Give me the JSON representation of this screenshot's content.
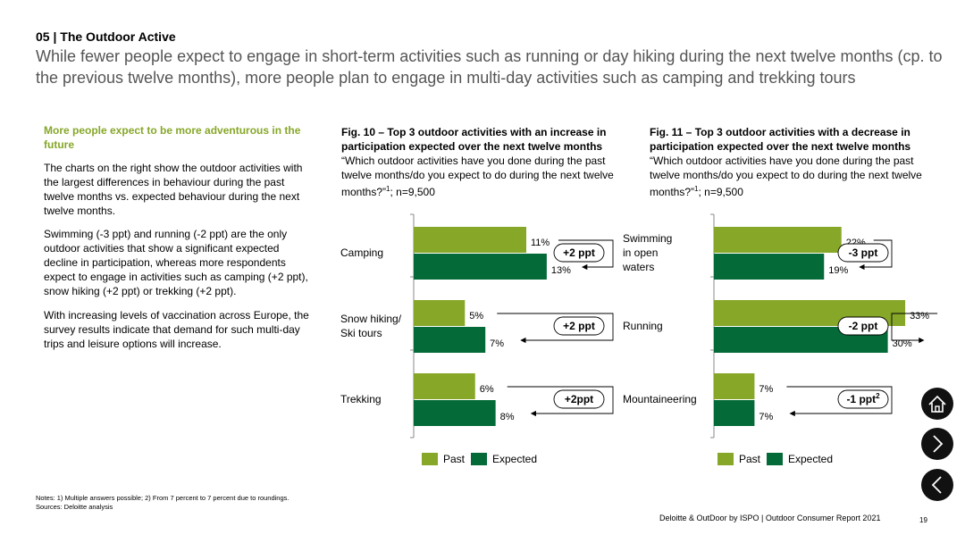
{
  "header": {
    "section_title": "05 | The Outdoor Active",
    "headline": "While fewer people expect to engage in short-term activities such as running or day hiking during the next twelve months (cp. to the previous twelve months), more people plan to engage in multi-day activities such as camping and trekking tours"
  },
  "intro": {
    "heading": "More people expect to be more adventurous in the future",
    "paragraphs": [
      "The charts on the right show the outdoor activities with the largest differences in behaviour during the past twelve months vs. expected behaviour during the next twelve months.",
      "Swimming (-3 ppt) and running (-2 ppt) are the only outdoor activities that show a significant expected decline in participation, whereas more respondents expect to engage in activities such as camping (+2 ppt), snow hiking (+2 ppt) or trekking (+2 ppt).",
      "With increasing levels of vaccination across Europe, the survey results indicate that demand for such multi-day trips and leisure options will increase."
    ]
  },
  "chart_data": [
    {
      "type": "bar",
      "orientation": "horizontal",
      "title": "Fig. 10 – Top 3 outdoor activities with an increase in participation expected over the next twelve months",
      "question": "“Which outdoor activities have you done during the past twelve months/do you expect to do during the next twelve months?”",
      "footnote_ref": "1",
      "sample": "; n=9,500",
      "categories": [
        "Camping",
        "Snow hiking/ Ski tours",
        "Trekking"
      ],
      "category_lines": [
        [
          "Camping"
        ],
        [
          "Snow hiking/",
          "Ski tours"
        ],
        [
          "Trekking"
        ]
      ],
      "series": [
        {
          "name": "Past",
          "values": [
            11,
            5,
            6
          ],
          "labels": [
            "11%",
            "5%",
            "6%"
          ]
        },
        {
          "name": "Expected",
          "values": [
            13,
            7,
            8
          ],
          "labels": [
            "13%",
            "7%",
            "8%"
          ]
        }
      ],
      "differences": [
        "+2 ppt",
        "+2 ppt",
        "+2ppt"
      ],
      "difference_sup": [
        "",
        "",
        ""
      ],
      "xlim": [
        0,
        22
      ]
    },
    {
      "type": "bar",
      "orientation": "horizontal",
      "title": "Fig. 11 – Top 3 outdoor activities with a decrease in participation expected over the next twelve months",
      "question": "“Which outdoor activities have you done during the past twelve months/do you expect to do during the next twelve months?”",
      "footnote_ref": "1",
      "sample": "; n=9,500",
      "categories": [
        "Swimming in open waters",
        "Running",
        "Mountaineering"
      ],
      "category_lines": [
        [
          "Swimming",
          "in open",
          "waters"
        ],
        [
          "Running"
        ],
        [
          "Mountaineering"
        ]
      ],
      "series": [
        {
          "name": "Past",
          "values": [
            22,
            33,
            7
          ],
          "labels": [
            "22%",
            "33%",
            "7%"
          ]
        },
        {
          "name": "Expected",
          "values": [
            19,
            30,
            7
          ],
          "labels": [
            "19%",
            "30%",
            "7%"
          ]
        }
      ],
      "differences": [
        "-3 ppt",
        "-2 ppt",
        "-1 ppt"
      ],
      "difference_sup": [
        "",
        "",
        "2"
      ],
      "xlim": [
        0,
        39
      ]
    }
  ],
  "legend": {
    "past": "Past",
    "expected": "Expected"
  },
  "colors": {
    "past": "#86a728",
    "expected": "#046a38",
    "accent": "#86a728"
  },
  "notes": {
    "line1": "Notes: 1) Multiple answers possible; 2) From 7 percent to 7 percent due to roundings.",
    "line2": "Sources: Deloitte analysis"
  },
  "footer": {
    "text": "Deloitte & OutDoor by ISPO | Outdoor Consumer Report 2021",
    "page": "19"
  },
  "nav": {
    "home_icon": "home-icon",
    "next_icon": "chevron-right-icon",
    "prev_icon": "chevron-left-icon"
  }
}
